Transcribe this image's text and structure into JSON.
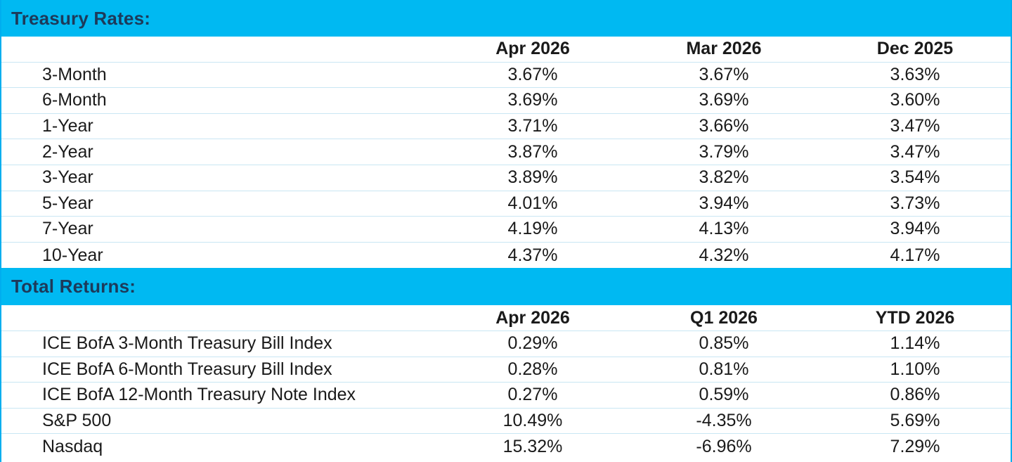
{
  "treasury": {
    "title": "Treasury Rates:",
    "columns": [
      "Apr 2026",
      "Mar 2026",
      "Dec 2025"
    ],
    "rows": [
      {
        "label": "3-Month",
        "values": [
          "3.67%",
          "3.67%",
          "3.63%"
        ]
      },
      {
        "label": "6-Month",
        "values": [
          "3.69%",
          "3.69%",
          "3.60%"
        ]
      },
      {
        "label": "1-Year",
        "values": [
          "3.71%",
          "3.66%",
          "3.47%"
        ]
      },
      {
        "label": "2-Year",
        "values": [
          "3.87%",
          "3.79%",
          "3.47%"
        ]
      },
      {
        "label": "3-Year",
        "values": [
          "3.89%",
          "3.82%",
          "3.54%"
        ]
      },
      {
        "label": "5-Year",
        "values": [
          "4.01%",
          "3.94%",
          "3.73%"
        ]
      },
      {
        "label": "7-Year",
        "values": [
          "4.19%",
          "4.13%",
          "3.94%"
        ]
      },
      {
        "label": "10-Year",
        "values": [
          "4.37%",
          "4.32%",
          "4.17%"
        ]
      }
    ]
  },
  "returns": {
    "title": "Total Returns:",
    "columns": [
      "Apr 2026",
      "Q1 2026",
      "YTD 2026"
    ],
    "rows": [
      {
        "label": "ICE BofA 3-Month Treasury Bill Index",
        "values": [
          "0.29%",
          "0.85%",
          "1.14%"
        ]
      },
      {
        "label": "ICE BofA 6-Month Treasury Bill Index",
        "values": [
          "0.28%",
          "0.81%",
          "1.10%"
        ]
      },
      {
        "label": "ICE BofA 12-Month Treasury Note Index",
        "values": [
          "0.27%",
          "0.59%",
          "0.86%"
        ]
      },
      {
        "label": "S&P 500",
        "values": [
          "10.49%",
          "-4.35%",
          "5.69%"
        ]
      },
      {
        "label": "Nasdaq",
        "values": [
          "15.32%",
          "-6.96%",
          "7.29%"
        ]
      }
    ]
  },
  "colors": {
    "section_bar": "#00b9f2",
    "section_title": "#1d3a5a",
    "border": "#00aeef",
    "row_divider": "#c9e6f3"
  }
}
